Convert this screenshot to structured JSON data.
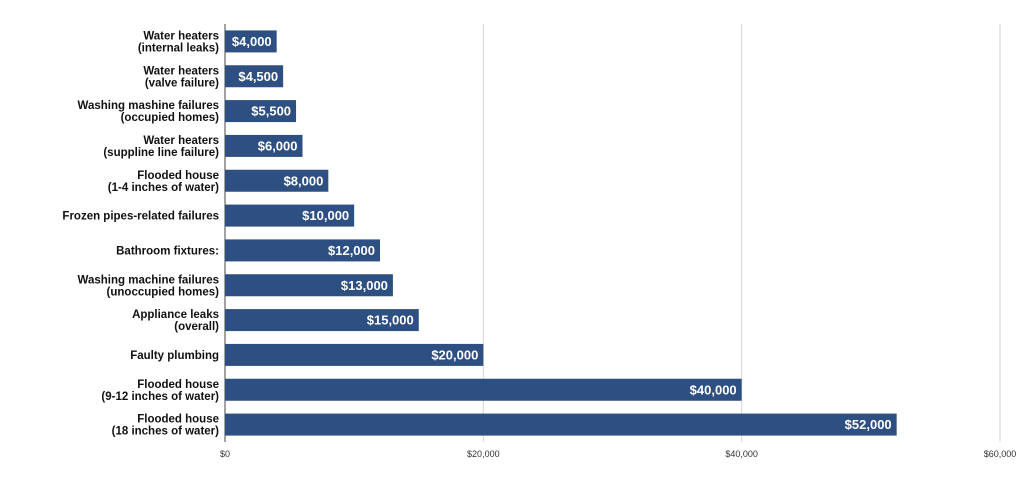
{
  "chart_data": {
    "type": "bar",
    "orientation": "horizontal",
    "title": "",
    "xlabel": "",
    "ylabel": "",
    "categories": [
      [
        "Water heaters",
        "(internal leaks)"
      ],
      [
        "Water heaters",
        "(valve failure)"
      ],
      [
        "Washing mashine failures",
        "(occupied homes)"
      ],
      [
        "Water heaters",
        "(suppline line failure)"
      ],
      [
        "Flooded house",
        "(1-4 inches of water)"
      ],
      [
        "Frozen pipes-related failures"
      ],
      [
        "Bathroom fixtures:"
      ],
      [
        "Washing machine failures",
        "(unoccupied homes)"
      ],
      [
        "Appliance leaks",
        "(overall)"
      ],
      [
        "Faulty plumbing"
      ],
      [
        "Flooded house",
        "(9-12 inches of water)"
      ],
      [
        "Flooded house",
        "(18 inches of water)"
      ]
    ],
    "values": [
      4000,
      4500,
      5500,
      6000,
      8000,
      10000,
      12000,
      13000,
      15000,
      20000,
      40000,
      52000
    ],
    "data_labels": [
      "$4,000",
      "$4,500",
      "$5,500",
      "$6,000",
      "$8,000",
      "$10,000",
      "$12,000",
      "$13,000",
      "$15,000",
      "$20,000",
      "$40,000",
      "$52,000"
    ],
    "xlim": [
      0,
      60000
    ],
    "xticks": [
      0,
      20000,
      40000,
      60000
    ],
    "xtick_labels": [
      "$0",
      "$20,000",
      "$40,000",
      "$60,000"
    ],
    "grid": "vertical",
    "legend": "none",
    "bar_color": "#2e4f82"
  }
}
